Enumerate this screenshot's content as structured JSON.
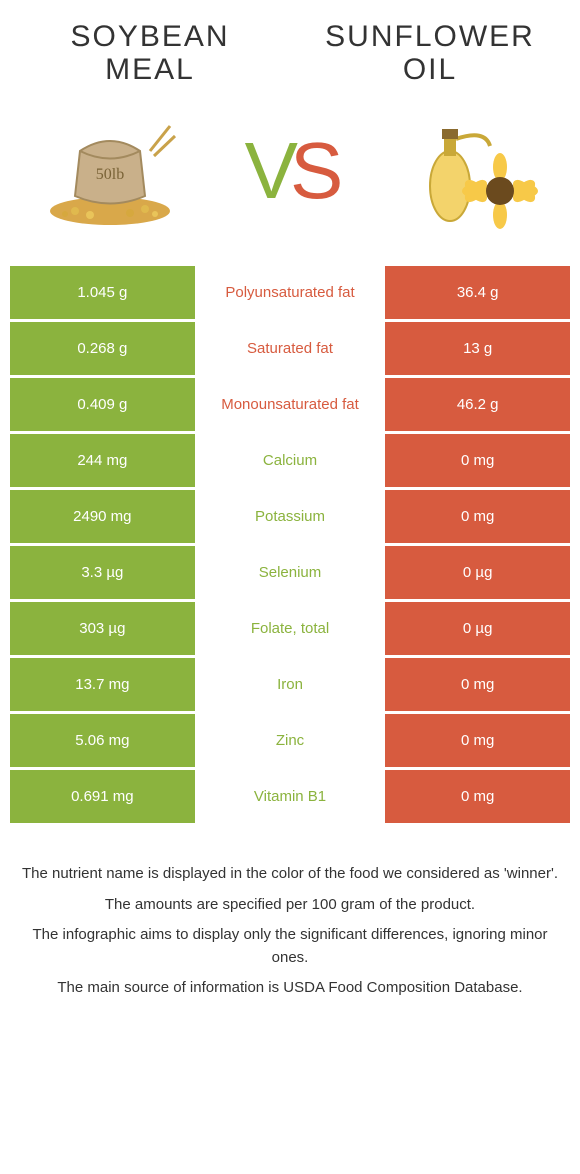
{
  "colors": {
    "left": "#8bb33e",
    "right": "#d75b3f",
    "white": "#ffffff",
    "text": "#333333"
  },
  "header": {
    "left_title_line1": "SOYBEAN",
    "left_title_line2": "MEAL",
    "right_title_line1": "SUNFLOWER",
    "right_title_line2": "OIL",
    "vs_v": "V",
    "vs_s": "S"
  },
  "rows": [
    {
      "left": "1.045 g",
      "label": "Polyunsaturated fat",
      "right": "36.4 g",
      "winner": "right"
    },
    {
      "left": "0.268 g",
      "label": "Saturated fat",
      "right": "13 g",
      "winner": "right"
    },
    {
      "left": "0.409 g",
      "label": "Monounsaturated fat",
      "right": "46.2 g",
      "winner": "right"
    },
    {
      "left": "244 mg",
      "label": "Calcium",
      "right": "0 mg",
      "winner": "left"
    },
    {
      "left": "2490 mg",
      "label": "Potassium",
      "right": "0 mg",
      "winner": "left"
    },
    {
      "left": "3.3 µg",
      "label": "Selenium",
      "right": "0 µg",
      "winner": "left"
    },
    {
      "left": "303 µg",
      "label": "Folate, total",
      "right": "0 µg",
      "winner": "left"
    },
    {
      "left": "13.7 mg",
      "label": "Iron",
      "right": "0 mg",
      "winner": "left"
    },
    {
      "left": "5.06 mg",
      "label": "Zinc",
      "right": "0 mg",
      "winner": "left"
    },
    {
      "left": "0.691 mg",
      "label": "Vitamin B1",
      "right": "0 mg",
      "winner": "left"
    }
  ],
  "footnotes": [
    "The nutrient name is displayed in the color of the food we considered as 'winner'.",
    "The amounts are specified per 100 gram of the product.",
    "The infographic aims to display only the significant differences, ignoring minor ones.",
    "The main source of information is USDA Food Composition Database."
  ]
}
